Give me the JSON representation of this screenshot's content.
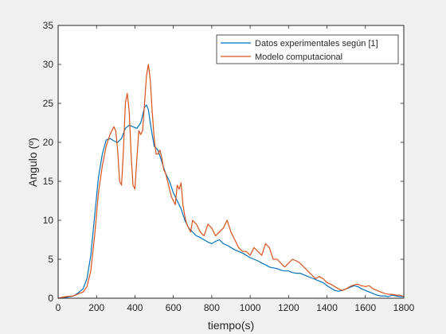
{
  "chart_data": {
    "type": "line",
    "title": "",
    "xlabel": "tiempo(s)",
    "ylabel": "Angulo (º)",
    "xlim": [
      0,
      1800
    ],
    "ylim": [
      0,
      35
    ],
    "xticks": [
      "0",
      "200",
      "400",
      "600",
      "800",
      "1000",
      "1200",
      "1400",
      "1600",
      "1800"
    ],
    "yticks": [
      "0",
      "5",
      "10",
      "15",
      "20",
      "25",
      "30",
      "35"
    ],
    "grid": false,
    "legend_position": "top-right",
    "series": [
      {
        "name": "Datos experimentales según [1]",
        "color": "#0072bd",
        "x": [
          0,
          40,
          80,
          100,
          130,
          150,
          170,
          190,
          210,
          230,
          250,
          270,
          290,
          310,
          330,
          350,
          370,
          390,
          410,
          430,
          450,
          460,
          470,
          480,
          490,
          500,
          520,
          540,
          560,
          580,
          600,
          620,
          640,
          660,
          680,
          700,
          720,
          740,
          760,
          780,
          800,
          820,
          840,
          860,
          880,
          900,
          920,
          940,
          960,
          980,
          1000,
          1020,
          1040,
          1060,
          1080,
          1100,
          1120,
          1140,
          1160,
          1180,
          1200,
          1220,
          1240,
          1260,
          1280,
          1300,
          1320,
          1340,
          1360,
          1380,
          1400,
          1420,
          1440,
          1460,
          1480,
          1500,
          1520,
          1540,
          1560,
          1580,
          1600,
          1620,
          1640,
          1660,
          1680,
          1700,
          1720,
          1740,
          1760,
          1780,
          1800
        ],
        "y": [
          0.0,
          0.1,
          0.3,
          0.6,
          1.2,
          2.5,
          5.5,
          10.5,
          15.5,
          18.5,
          20.3,
          20.5,
          20.2,
          20.0,
          20.5,
          21.8,
          22.2,
          22.0,
          21.8,
          22.5,
          24.5,
          24.8,
          24.2,
          22.5,
          21.0,
          19.5,
          19.0,
          17.5,
          16.0,
          15.0,
          13.5,
          12.5,
          11.5,
          10.0,
          9.0,
          8.5,
          8.0,
          7.8,
          7.5,
          7.2,
          7.0,
          7.3,
          7.5,
          7.0,
          6.8,
          6.5,
          6.2,
          6.0,
          5.8,
          5.5,
          5.2,
          5.0,
          4.8,
          4.5,
          4.3,
          4.0,
          3.9,
          3.8,
          3.6,
          3.5,
          3.5,
          3.3,
          3.2,
          3.2,
          3.0,
          2.8,
          2.6,
          2.4,
          2.2,
          2.0,
          1.6,
          1.3,
          1.0,
          0.9,
          1.0,
          1.2,
          1.4,
          1.6,
          1.5,
          1.2,
          1.0,
          0.8,
          0.6,
          0.4,
          0.3,
          0.3,
          0.2,
          0.4,
          0.3,
          0.2,
          0.2
        ]
      },
      {
        "name": "Modelo computacional",
        "color": "#d95319",
        "x": [
          0,
          40,
          80,
          100,
          130,
          150,
          170,
          190,
          210,
          230,
          250,
          270,
          290,
          300,
          310,
          320,
          330,
          340,
          350,
          360,
          370,
          380,
          390,
          400,
          410,
          420,
          430,
          440,
          450,
          460,
          470,
          480,
          490,
          500,
          510,
          520,
          530,
          540,
          550,
          560,
          570,
          580,
          590,
          600,
          610,
          620,
          630,
          640,
          650,
          660,
          670,
          680,
          690,
          700,
          720,
          740,
          760,
          780,
          800,
          820,
          840,
          860,
          880,
          900,
          920,
          940,
          960,
          980,
          1000,
          1020,
          1040,
          1060,
          1080,
          1100,
          1120,
          1140,
          1160,
          1180,
          1200,
          1220,
          1240,
          1260,
          1280,
          1300,
          1320,
          1340,
          1360,
          1380,
          1400,
          1420,
          1440,
          1460,
          1480,
          1500,
          1520,
          1540,
          1560,
          1580,
          1600,
          1620,
          1640,
          1660,
          1680,
          1700,
          1720,
          1740,
          1760,
          1780,
          1800
        ],
        "y": [
          0.0,
          0.2,
          0.3,
          0.5,
          0.8,
          1.5,
          3.5,
          8.0,
          13.5,
          17.0,
          19.5,
          21.0,
          22.0,
          21.5,
          19.0,
          15.0,
          14.5,
          19.0,
          25.0,
          26.3,
          24.0,
          18.5,
          14.5,
          14.0,
          18.0,
          21.5,
          21.0,
          21.5,
          25.0,
          28.5,
          30.0,
          28.0,
          24.0,
          20.5,
          18.5,
          18.5,
          19.0,
          18.0,
          16.5,
          16.0,
          15.0,
          14.0,
          13.0,
          12.5,
          12.0,
          14.5,
          14.0,
          14.8,
          12.0,
          10.5,
          9.5,
          9.0,
          8.5,
          10.0,
          9.5,
          8.5,
          8.0,
          9.5,
          9.0,
          8.0,
          8.5,
          9.0,
          10.0,
          8.5,
          7.5,
          6.5,
          6.0,
          6.0,
          5.5,
          6.5,
          6.0,
          5.5,
          7.0,
          6.5,
          5.0,
          5.0,
          4.5,
          4.0,
          4.5,
          5.0,
          4.8,
          4.5,
          4.0,
          3.5,
          3.0,
          2.5,
          2.8,
          2.5,
          2.0,
          1.8,
          1.5,
          1.2,
          1.0,
          1.2,
          1.5,
          1.7,
          1.8,
          1.6,
          1.5,
          1.6,
          1.2,
          1.0,
          0.8,
          0.6,
          0.5,
          0.5,
          0.4,
          0.4,
          0.2
        ]
      }
    ]
  }
}
